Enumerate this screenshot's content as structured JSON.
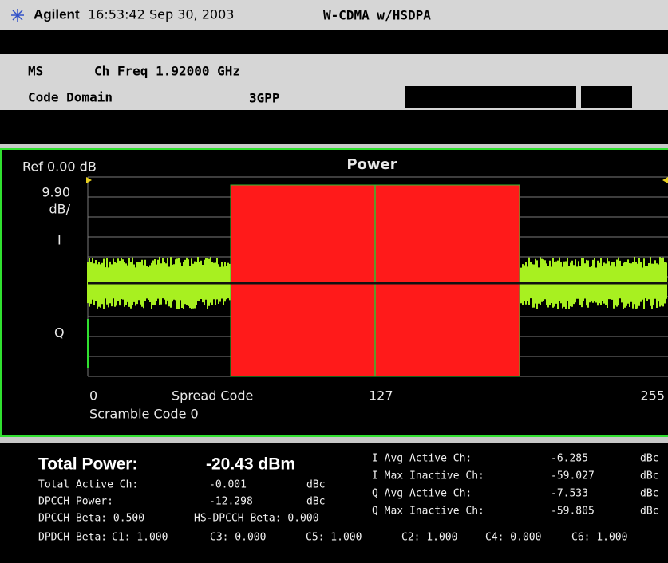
{
  "header": {
    "brand": "Agilent",
    "time": "16:53:42  Sep 30, 2003",
    "mode": "W-CDMA w/HSDPA"
  },
  "setup": {
    "ms": "MS",
    "ch_freq": "Ch Freq 1.92000 GHz",
    "measurement": "Code Domain",
    "standard": "3GPP"
  },
  "plot": {
    "ref": "Ref 0.00 dB",
    "title": "Power",
    "scale": "9.90",
    "scale_unit": "dB/",
    "i_label": "I",
    "q_label": "Q",
    "x_start": "0",
    "x_title": "Spread Code",
    "x_mid": "127",
    "x_end": "255",
    "scramble": "Scramble Code 0"
  },
  "results": {
    "total_power_label": "Total Power:",
    "total_power_value": "-20.43 dBm",
    "left_rows": [
      [
        "Total Active Ch:",
        "-0.001",
        "dBc"
      ],
      [
        "DPCCH Power:",
        "-12.298",
        "dBc"
      ]
    ],
    "dpcch_beta": "DPCCH Beta: 0.500",
    "hs_dpcch_beta": "HS-DPCCH Beta: 0.000",
    "dpdch_label": "DPDCH Beta:",
    "dpdch": [
      "C1: 1.000",
      "C3: 0.000",
      "C5: 1.000",
      "C2: 1.000",
      "C4: 0.000",
      "C6: 1.000"
    ],
    "right_rows": [
      [
        "I Avg Active  Ch:",
        "-6.285",
        "dBc"
      ],
      [
        "I Max Inactive Ch:",
        "-59.027",
        "dBc"
      ],
      [
        "Q Avg Active  Ch:",
        "-7.533",
        "dBc"
      ],
      [
        "Q Max Inactive Ch:",
        "-59.805",
        "dBc"
      ]
    ]
  }
}
